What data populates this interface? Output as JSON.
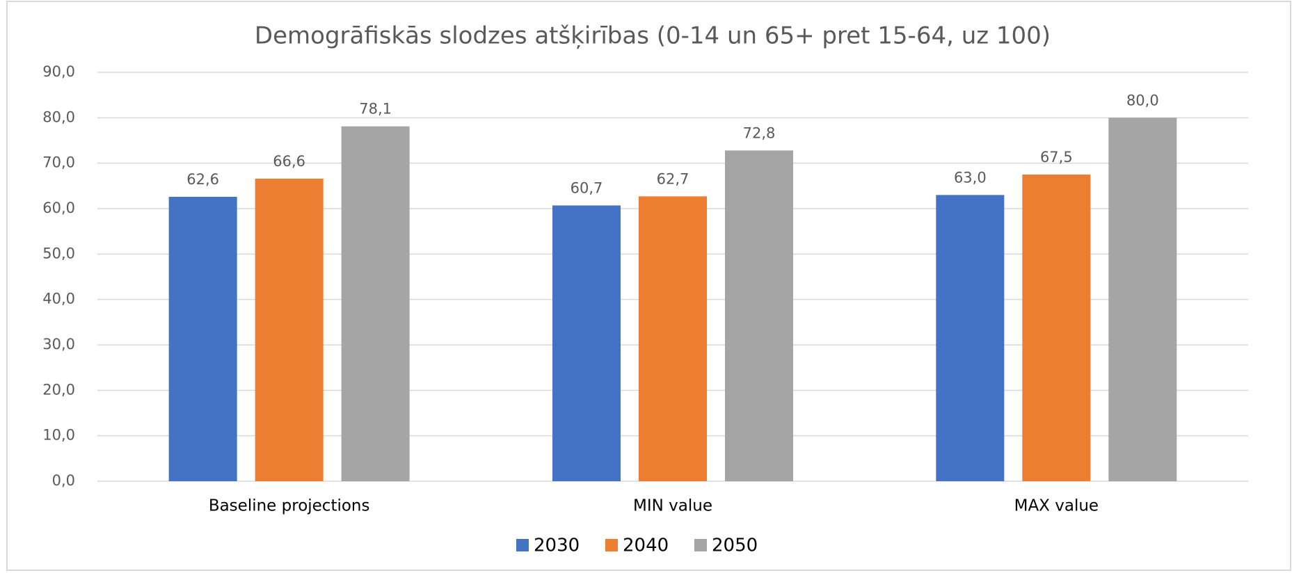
{
  "chart_data": {
    "type": "bar",
    "title": "Demogrāfiskās slodzes atšķirības (0-14 un 65+ pret 15-64, uz 100)",
    "categories": [
      "Baseline projections",
      "MIN value",
      "MAX value"
    ],
    "series": [
      {
        "name": "2030",
        "color": "#4472c4",
        "values": [
          62.6,
          60.7,
          63.0
        ],
        "value_labels": [
          "62,6",
          "60,7",
          "63,0"
        ]
      },
      {
        "name": "2040",
        "color": "#ed7d31",
        "values": [
          66.6,
          62.7,
          67.5
        ],
        "value_labels": [
          "66,6",
          "62,7",
          "67,5"
        ]
      },
      {
        "name": "2050",
        "color": "#a5a5a5",
        "values": [
          78.1,
          72.8,
          80.0
        ],
        "value_labels": [
          "78,1",
          "72,8",
          "80,0"
        ]
      }
    ],
    "ylim": [
      0,
      90
    ],
    "yticks": [
      {
        "value": 0,
        "label": "0,0"
      },
      {
        "value": 10,
        "label": "10,0"
      },
      {
        "value": 20,
        "label": "20,0"
      },
      {
        "value": 30,
        "label": "30,0"
      },
      {
        "value": 40,
        "label": "40,0"
      },
      {
        "value": 50,
        "label": "50,0"
      },
      {
        "value": 60,
        "label": "60,0"
      },
      {
        "value": 70,
        "label": "70,0"
      },
      {
        "value": 80,
        "label": "80,0"
      },
      {
        "value": 90,
        "label": "90,0"
      }
    ],
    "grid": true,
    "legend": "bottom"
  }
}
